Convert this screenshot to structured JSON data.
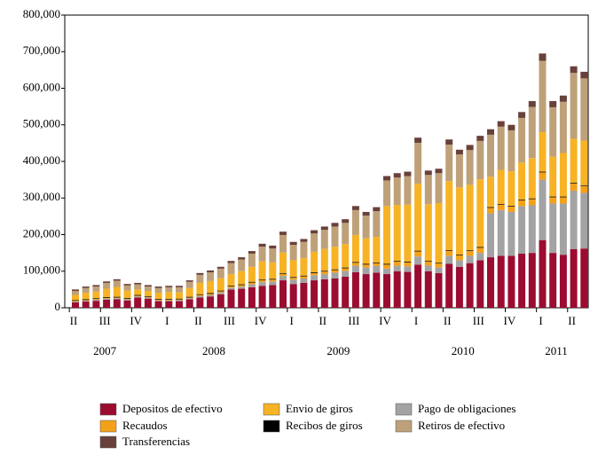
{
  "chart_data": {
    "type": "stacked_bar",
    "categories": [
      null,
      null,
      null,
      null,
      null,
      null,
      null,
      null,
      null,
      null,
      null,
      null,
      null,
      null,
      null,
      null,
      null,
      null,
      null,
      null,
      null,
      null,
      null,
      null,
      null,
      null,
      null,
      null,
      null,
      null,
      null,
      null,
      null,
      null,
      null,
      null,
      null,
      null,
      null,
      null,
      null,
      null,
      null,
      null,
      null,
      null,
      null,
      null,
      null,
      null
    ],
    "quarter_labels": [
      "II",
      "III",
      "IV",
      "I",
      "II",
      "III",
      "IV",
      "I",
      "II",
      "III",
      "IV",
      "I",
      "II",
      "III",
      "IV",
      "I",
      "II"
    ],
    "years": [
      "2007",
      "2008",
      "2009",
      "2010",
      "2011"
    ],
    "ylim": [
      0,
      800000
    ],
    "yticks": [
      0,
      {
        "value": 100000,
        "label": "100,000"
      },
      {
        "value": 200000,
        "label": "200,000"
      },
      {
        "value": 300000,
        "label": "300,000"
      },
      {
        "value": 400000,
        "label": "400,000"
      },
      {
        "value": 500000,
        "label": "500,000"
      },
      {
        "value": 600000,
        "label": "600,000"
      },
      {
        "value": 700000,
        "label": "700,000"
      },
      {
        "value": 800000,
        "label": "800,000"
      }
    ],
    "series": [
      {
        "name": "Depositos de efectivo",
        "color": "#9b0c30",
        "values": [
          15000,
          17000,
          19000,
          22000,
          23000,
          20000,
          28000,
          25000,
          18000,
          18000,
          18000,
          23000,
          28000,
          31000,
          37000,
          50000,
          52000,
          56000,
          60000,
          62000,
          75000,
          65000,
          68000,
          75000,
          78000,
          80000,
          85000,
          97000,
          92000,
          96000,
          92000,
          100000,
          98000,
          118000,
          100000,
          95000,
          120000,
          112000,
          122000,
          130000,
          138000,
          142000,
          142000,
          148000,
          150000,
          185000,
          150000,
          145000,
          160000,
          162000
        ]
      },
      {
        "name": "Pago de obligaciones",
        "color": "#a3a3a3",
        "values": [
          2000,
          2000,
          3000,
          3000,
          3000,
          3000,
          3000,
          3000,
          2000,
          2000,
          3000,
          3000,
          4000,
          4000,
          5000,
          5000,
          6000,
          8000,
          10000,
          10000,
          12000,
          12000,
          12000,
          14000,
          14000,
          16000,
          16000,
          18000,
          18000,
          18000,
          15000,
          15000,
          15000,
          22000,
          15000,
          15000,
          22000,
          18000,
          20000,
          20000,
          120000,
          125000,
          120000,
          130000,
          130000,
          165000,
          135000,
          140000,
          160000,
          152000
        ]
      },
      {
        "name": "Recaudos",
        "color": "#f3a11a",
        "values": [
          2000,
          2000,
          2000,
          2000,
          2000,
          2000,
          2000,
          2000,
          2000,
          2000,
          2000,
          2000,
          3000,
          3000,
          3000,
          4000,
          4000,
          5000,
          5000,
          5000,
          6000,
          5000,
          6000,
          6000,
          7000,
          7000,
          7000,
          8000,
          8000,
          8000,
          11000,
          11000,
          11000,
          14000,
          11000,
          11000,
          14000,
          13000,
          13000,
          14000,
          15000,
          15000,
          15000,
          16000,
          17000,
          20000,
          17000,
          17000,
          20000,
          19000
        ]
      },
      {
        "name": "Recibos de giros",
        "color": "#000000",
        "values": [
          2000,
          2000,
          2000,
          2000,
          2000,
          2000,
          2000,
          2000,
          2000,
          2000,
          2000,
          2000,
          2000,
          2000,
          2000,
          2000,
          2000,
          2000,
          2000,
          2000,
          2000,
          2000,
          2000,
          2000,
          2000,
          2000,
          2000,
          2000,
          2000,
          2000,
          2000,
          2000,
          2000,
          2000,
          2000,
          2000,
          2000,
          2000,
          2000,
          2000,
          2000,
          2000,
          2000,
          2000,
          2000,
          2000,
          2000,
          2000,
          2000,
          2000
        ]
      },
      {
        "name": "Envio de giros",
        "color": "#f7b324",
        "values": [
          14000,
          18000,
          18000,
          23000,
          27000,
          20000,
          15000,
          14000,
          17000,
          19000,
          17000,
          24000,
          31000,
          33000,
          34000,
          31000,
          36000,
          41000,
          50000,
          45000,
          56000,
          46000,
          48000,
          56000,
          60000,
          62000,
          64000,
          74000,
          70000,
          70000,
          158000,
          153000,
          156000,
          183000,
          155000,
          163000,
          188000,
          184000,
          179000,
          185000,
          83000,
          93000,
          94000,
          101000,
          110000,
          108000,
          109000,
          119000,
          120000,
          122000
        ]
      },
      {
        "name": "Retiros de efectivo",
        "color": "#bea179",
        "values": [
          11000,
          13000,
          14000,
          16000,
          17000,
          14000,
          14000,
          12000,
          13000,
          13000,
          14000,
          17000,
          22000,
          24000,
          26000,
          30000,
          32000,
          36000,
          40000,
          38000,
          48000,
          42000,
          44000,
          50000,
          52000,
          55000,
          58000,
          68000,
          62000,
          70000,
          70000,
          75000,
          78000,
          112000,
          80000,
          82000,
          100000,
          90000,
          95000,
          105000,
          115000,
          118000,
          112000,
          122000,
          140000,
          195000,
          135000,
          140000,
          180000,
          170000
        ]
      },
      {
        "name": "Transferencias",
        "color": "#68413a",
        "values": [
          4000,
          4000,
          4000,
          4000,
          4000,
          4000,
          4000,
          4000,
          4000,
          4000,
          4000,
          4000,
          5000,
          5000,
          5000,
          6000,
          6000,
          7000,
          8000,
          8000,
          9000,
          8000,
          8000,
          9000,
          9000,
          10000,
          10000,
          11000,
          10000,
          11000,
          12000,
          12000,
          12000,
          14000,
          12000,
          12000,
          14000,
          13000,
          14000,
          14000,
          15000,
          15000,
          15000,
          16000,
          16000,
          20000,
          17000,
          17000,
          18000,
          18000
        ]
      }
    ]
  }
}
